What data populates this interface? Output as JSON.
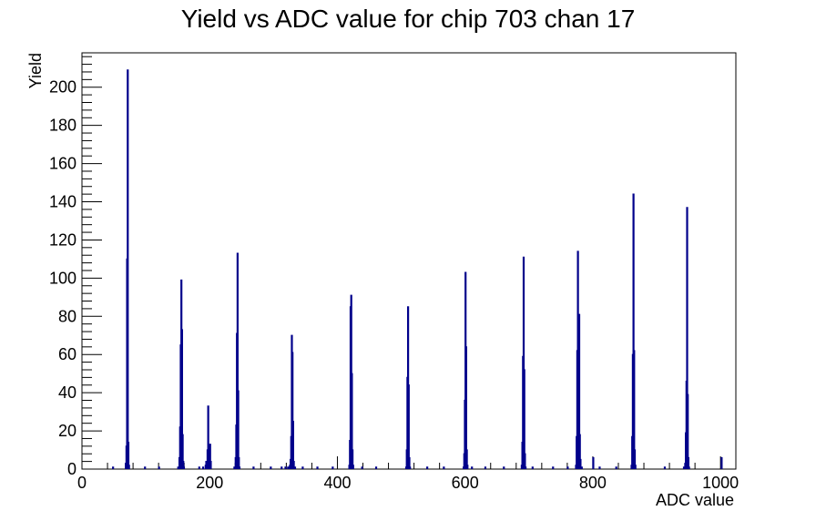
{
  "chart_data": {
    "type": "bar",
    "title": "Yield vs ADC value for chip 703 chan 17",
    "xlabel": "ADC value",
    "ylabel": "Yield",
    "xlim": [
      0,
      1024
    ],
    "ylim": [
      0,
      218
    ],
    "xticks": [
      0,
      200,
      400,
      600,
      800,
      1000
    ],
    "yticks": [
      0,
      20,
      40,
      60,
      80,
      100,
      120,
      140,
      160,
      180,
      200
    ],
    "grid": false,
    "line_color": "#00008b",
    "series": [
      {
        "points": [
          [
            48,
            1
          ],
          [
            68,
            3
          ],
          [
            69,
            12
          ],
          [
            70,
            110
          ],
          [
            71,
            209
          ],
          [
            72,
            14
          ],
          [
            73,
            2
          ],
          [
            98,
            1
          ],
          [
            120,
            1
          ],
          [
            150,
            1
          ],
          [
            152,
            6
          ],
          [
            153,
            22
          ],
          [
            154,
            65
          ],
          [
            155,
            99
          ],
          [
            156,
            73
          ],
          [
            157,
            18
          ],
          [
            158,
            4
          ],
          [
            159,
            1
          ],
          [
            183,
            1
          ],
          [
            189,
            1
          ],
          [
            193,
            2
          ],
          [
            194,
            4
          ],
          [
            196,
            10
          ],
          [
            197,
            33
          ],
          [
            198,
            8
          ],
          [
            199,
            12
          ],
          [
            200,
            13
          ],
          [
            201,
            4
          ],
          [
            238,
            1
          ],
          [
            240,
            6
          ],
          [
            241,
            23
          ],
          [
            242,
            71
          ],
          [
            243,
            113
          ],
          [
            244,
            41
          ],
          [
            245,
            6
          ],
          [
            246,
            1
          ],
          [
            268,
            1
          ],
          [
            295,
            1
          ],
          [
            312,
            1
          ],
          [
            318,
            1
          ],
          [
            322,
            1
          ],
          [
            324,
            1
          ],
          [
            325,
            2
          ],
          [
            326,
            5
          ],
          [
            327,
            17
          ],
          [
            328,
            70
          ],
          [
            329,
            61
          ],
          [
            330,
            25
          ],
          [
            331,
            4
          ],
          [
            333,
            1
          ],
          [
            345,
            1
          ],
          [
            368,
            1
          ],
          [
            392,
            1
          ],
          [
            418,
            2
          ],
          [
            419,
            15
          ],
          [
            420,
            85
          ],
          [
            421,
            91
          ],
          [
            422,
            50
          ],
          [
            423,
            10
          ],
          [
            424,
            2
          ],
          [
            438,
            1
          ],
          [
            460,
            1
          ],
          [
            507,
            1
          ],
          [
            508,
            10
          ],
          [
            509,
            48
          ],
          [
            510,
            85
          ],
          [
            511,
            44
          ],
          [
            512,
            6
          ],
          [
            513,
            1
          ],
          [
            540,
            1
          ],
          [
            566,
            1
          ],
          [
            597,
            1
          ],
          [
            598,
            8
          ],
          [
            599,
            36
          ],
          [
            600,
            103
          ],
          [
            601,
            64
          ],
          [
            602,
            10
          ],
          [
            603,
            2
          ],
          [
            610,
            1
          ],
          [
            631,
            1
          ],
          [
            660,
            1
          ],
          [
            688,
            2
          ],
          [
            689,
            14
          ],
          [
            690,
            59
          ],
          [
            691,
            111
          ],
          [
            692,
            52
          ],
          [
            693,
            8
          ],
          [
            694,
            1
          ],
          [
            705,
            1
          ],
          [
            737,
            1
          ],
          [
            760,
            1
          ],
          [
            773,
            2
          ],
          [
            774,
            17
          ],
          [
            775,
            62
          ],
          [
            776,
            114
          ],
          [
            777,
            64
          ],
          [
            778,
            81
          ],
          [
            779,
            18
          ],
          [
            780,
            5
          ],
          [
            782,
            1
          ],
          [
            800,
            6
          ],
          [
            810,
            1
          ],
          [
            836,
            1
          ],
          [
            860,
            2
          ],
          [
            861,
            17
          ],
          [
            862,
            60
          ],
          [
            863,
            144
          ],
          [
            864,
            62
          ],
          [
            865,
            10
          ],
          [
            866,
            2
          ],
          [
            912,
            1
          ],
          [
            942,
            1
          ],
          [
            944,
            3
          ],
          [
            945,
            19
          ],
          [
            946,
            46
          ],
          [
            947,
            137
          ],
          [
            948,
            39
          ],
          [
            949,
            6
          ],
          [
            950,
            1
          ],
          [
            1001,
            6
          ]
        ]
      }
    ]
  }
}
